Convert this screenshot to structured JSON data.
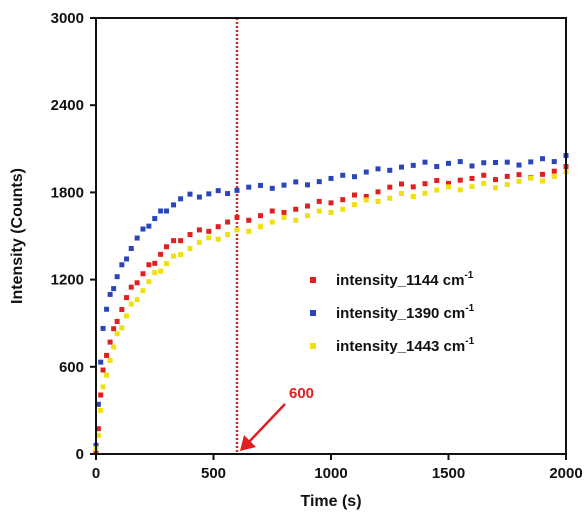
{
  "chart_data": {
    "type": "scatter",
    "title": "",
    "xlabel": "Time (s)",
    "ylabel": "Intensity (Counts)",
    "xlim": [
      0,
      2000
    ],
    "ylim": [
      0,
      3000
    ],
    "xticks": [
      0,
      500,
      1000,
      1500,
      2000
    ],
    "yticks": [
      0,
      600,
      1200,
      1800,
      2400,
      3000
    ],
    "grid": false,
    "legend_position": "center-right",
    "vline": {
      "x": 600,
      "label": "600",
      "color": "#e02020"
    },
    "series": [
      {
        "name": "intensity_1144 cm",
        "unit_superscript": "-1",
        "color": "#e02020",
        "x": [
          0,
          10,
          20,
          30,
          45,
          60,
          75,
          90,
          110,
          130,
          150,
          175,
          200,
          225,
          250,
          275,
          300,
          330,
          360,
          400,
          440,
          480,
          520,
          560,
          600,
          650,
          700,
          750,
          800,
          850,
          900,
          950,
          1000,
          1050,
          1100,
          1150,
          1200,
          1250,
          1300,
          1350,
          1400,
          1450,
          1500,
          1550,
          1600,
          1650,
          1700,
          1750,
          1800,
          1850,
          1900,
          1950,
          2000
        ],
        "y": [
          30,
          180,
          400,
          560,
          690,
          770,
          850,
          930,
          1000,
          1070,
          1130,
          1190,
          1240,
          1290,
          1330,
          1380,
          1420,
          1450,
          1480,
          1510,
          1530,
          1550,
          1570,
          1590,
          1610,
          1620,
          1640,
          1660,
          1680,
          1690,
          1700,
          1720,
          1740,
          1750,
          1770,
          1790,
          1810,
          1830,
          1840,
          1850,
          1860,
          1870,
          1880,
          1890,
          1890,
          1900,
          1900,
          1910,
          1910,
          1920,
          1930,
          1940,
          1960
        ]
      },
      {
        "name": "intensity_1390 cm",
        "unit_superscript": "-1",
        "color": "#2a45b8",
        "x": [
          0,
          10,
          20,
          30,
          45,
          60,
          75,
          90,
          110,
          130,
          150,
          175,
          200,
          225,
          250,
          275,
          300,
          330,
          360,
          400,
          440,
          480,
          520,
          560,
          600,
          650,
          700,
          750,
          800,
          850,
          900,
          950,
          1000,
          1050,
          1100,
          1150,
          1200,
          1250,
          1300,
          1350,
          1400,
          1450,
          1500,
          1550,
          1600,
          1650,
          1700,
          1750,
          1800,
          1850,
          1900,
          1950,
          2000
        ],
        "y": [
          60,
          330,
          650,
          870,
          990,
          1080,
          1150,
          1220,
          1290,
          1360,
          1420,
          1480,
          1530,
          1580,
          1620,
          1660,
          1690,
          1720,
          1750,
          1770,
          1780,
          1790,
          1800,
          1810,
          1820,
          1830,
          1830,
          1840,
          1850,
          1860,
          1870,
          1880,
          1890,
          1900,
          1920,
          1940,
          1950,
          1970,
          1980,
          1980,
          1990,
          1990,
          2000,
          2000,
          2000,
          2010,
          2000,
          1990,
          2000,
          2010,
          2020,
          2030,
          2060
        ]
      },
      {
        "name": "intensity_1443 cm",
        "unit_superscript": "-1",
        "color": "#f0e010",
        "x": [
          0,
          10,
          20,
          30,
          45,
          60,
          75,
          90,
          110,
          130,
          150,
          175,
          200,
          225,
          250,
          275,
          300,
          330,
          360,
          400,
          440,
          480,
          520,
          560,
          600,
          650,
          700,
          750,
          800,
          850,
          900,
          950,
          1000,
          1050,
          1100,
          1150,
          1200,
          1250,
          1300,
          1350,
          1400,
          1450,
          1500,
          1550,
          1600,
          1650,
          1700,
          1750,
          1800,
          1850,
          1900,
          1950,
          2000
        ],
        "y": [
          20,
          140,
          300,
          450,
          560,
          650,
          730,
          810,
          880,
          950,
          1020,
          1080,
          1130,
          1180,
          1230,
          1270,
          1310,
          1350,
          1390,
          1420,
          1450,
          1470,
          1490,
          1510,
          1530,
          1550,
          1570,
          1590,
          1610,
          1620,
          1640,
          1660,
          1680,
          1690,
          1710,
          1730,
          1750,
          1760,
          1780,
          1790,
          1800,
          1810,
          1820,
          1830,
          1840,
          1850,
          1850,
          1860,
          1870,
          1880,
          1890,
          1910,
          1930
        ]
      }
    ]
  }
}
